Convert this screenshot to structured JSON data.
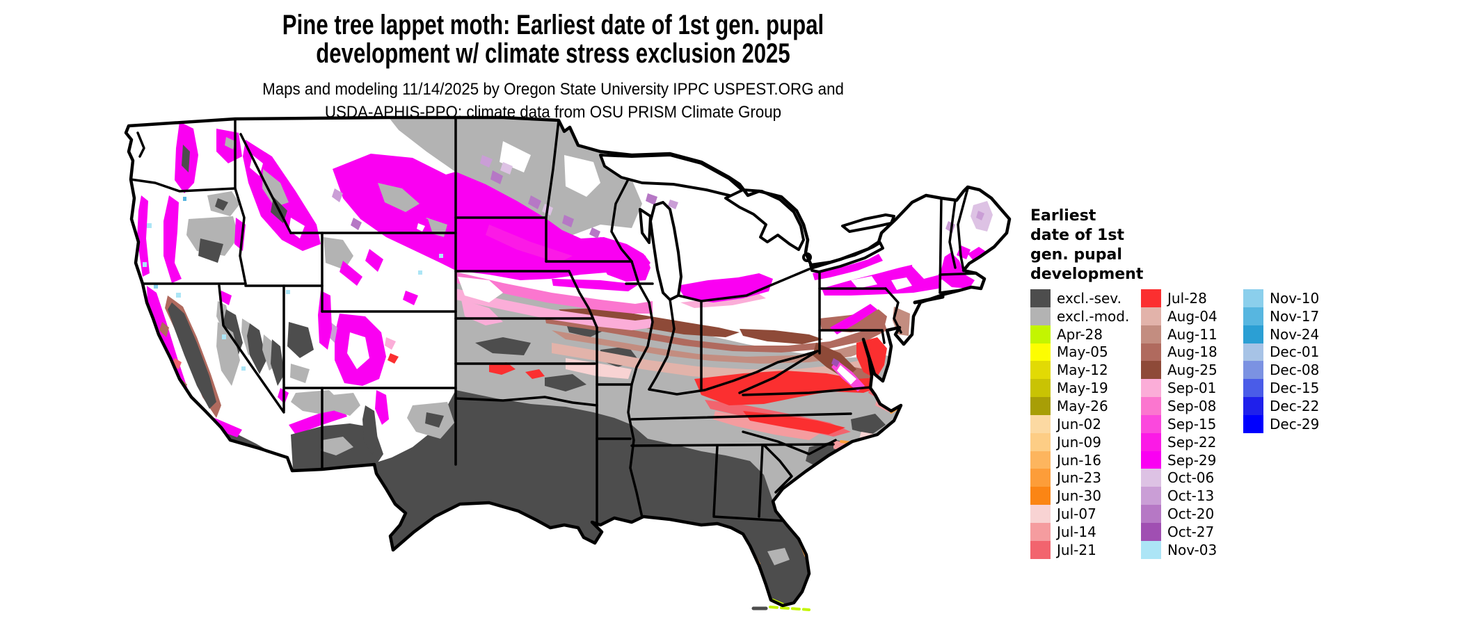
{
  "title": {
    "line1": "Pine tree lappet moth: Earliest date of 1st gen. pupal",
    "line2": "development w/ climate stress exclusion 2025"
  },
  "subtitle": {
    "line1": "Maps and modeling 11/14/2025 by Oregon State University IPPC USPEST.ORG and",
    "line2": "USDA-APHIS-PPQ; climate data from OSU PRISM Climate Group"
  },
  "legend": {
    "title_lines": [
      "Earliest",
      "date of 1st",
      "gen. pupal",
      "development"
    ],
    "columns": [
      [
        {
          "key": "excl_sev",
          "label": "excl.-sev.",
          "color": "#4d4d4d"
        },
        {
          "key": "excl_mod",
          "label": "excl.-mod.",
          "color": "#b3b3b3"
        },
        {
          "key": "apr28",
          "label": "Apr-28",
          "color": "#c3f501"
        },
        {
          "key": "may05",
          "label": "May-05",
          "color": "#fdfd01"
        },
        {
          "key": "may12",
          "label": "May-12",
          "color": "#e2da04"
        },
        {
          "key": "may19",
          "label": "May-19",
          "color": "#c9c303"
        },
        {
          "key": "may26",
          "label": "May-26",
          "color": "#a89e06"
        },
        {
          "key": "jun02",
          "label": "Jun-02",
          "color": "#fcd9a2"
        },
        {
          "key": "jun09",
          "label": "Jun-09",
          "color": "#fdcd85"
        },
        {
          "key": "jun16",
          "label": "Jun-16",
          "color": "#fdb55e"
        },
        {
          "key": "jun23",
          "label": "Jun-23",
          "color": "#fd9d39"
        },
        {
          "key": "jun30",
          "label": "Jun-30",
          "color": "#fb8514"
        },
        {
          "key": "jul07",
          "label": "Jul-07",
          "color": "#f8d3d3"
        },
        {
          "key": "jul14",
          "label": "Jul-14",
          "color": "#f59c9f"
        },
        {
          "key": "jul21",
          "label": "Jul-21",
          "color": "#f2646e"
        }
      ],
      [
        {
          "key": "jul28",
          "label": "Jul-28",
          "color": "#fb2f30"
        },
        {
          "key": "aug04",
          "label": "Aug-04",
          "color": "#e2b3aa"
        },
        {
          "key": "aug11",
          "label": "Aug-11",
          "color": "#c38d80"
        },
        {
          "key": "aug18",
          "label": "Aug-18",
          "color": "#b06a5e"
        },
        {
          "key": "aug25",
          "label": "Aug-25",
          "color": "#8e4a38"
        },
        {
          "key": "sep01",
          "label": "Sep-01",
          "color": "#fbadd8"
        },
        {
          "key": "sep08",
          "label": "Sep-08",
          "color": "#fb76cf"
        },
        {
          "key": "sep15",
          "label": "Sep-15",
          "color": "#fb48dd"
        },
        {
          "key": "sep22",
          "label": "Sep-22",
          "color": "#fb1ae6"
        },
        {
          "key": "sep29",
          "label": "Sep-29",
          "color": "#fa00f2"
        },
        {
          "key": "oct06",
          "label": "Oct-06",
          "color": "#ddc2e4"
        },
        {
          "key": "oct13",
          "label": "Oct-13",
          "color": "#ca9ed6"
        },
        {
          "key": "oct20",
          "label": "Oct-20",
          "color": "#b678c5"
        },
        {
          "key": "oct27",
          "label": "Oct-27",
          "color": "#a04fb2"
        },
        {
          "key": "nov03",
          "label": "Nov-03",
          "color": "#ace5f6"
        }
      ],
      [
        {
          "key": "nov10",
          "label": "Nov-10",
          "color": "#8bcfec"
        },
        {
          "key": "nov17",
          "label": "Nov-17",
          "color": "#57b6e0"
        },
        {
          "key": "nov24",
          "label": "Nov-24",
          "color": "#2b9fd4"
        },
        {
          "key": "dec01",
          "label": "Dec-01",
          "color": "#a7c3e6"
        },
        {
          "key": "dec08",
          "label": "Dec-08",
          "color": "#7b92e2"
        },
        {
          "key": "dec15",
          "label": "Dec-15",
          "color": "#4a5ce8"
        },
        {
          "key": "dec22",
          "label": "Dec-22",
          "color": "#1f20eb"
        },
        {
          "key": "dec29",
          "label": "Dec-29",
          "color": "#0000fe"
        }
      ]
    ]
  },
  "map": {
    "kind": "raster choropleth of conterminous United States with state borders",
    "no_data_color": "#ffffff",
    "border_color": "#000000",
    "regions_summary": [
      "Deep South, Texas, Florida and Gulf states: excl.-sev. dark gray",
      "Kansas, Missouri, central plains, Carolinas, Georgia uplands: excl.-mod. light gray mottle",
      "Kentucky / Tennessee / Virginia / Maryland-Delaware: Jul-28 red band with Jul-14 and Jul-21 fringes",
      "Corn Belt Iowa-Illinois-Indiana-Ohio-southern Pennsylvania: Aug-04 to Aug-25 tan-to-brown bands",
      "Northern plains, upper Midwest, Great Lakes, upstate New York, New England: Sep-08 to Sep-29 pink-magenta band",
      "Northern North Dakota and Minnesota: excl.-mod. gray",
      "Mountain West: white (no development) with magenta ridges, gray and dark-gray basins, Oct purple fringes, Nov cyan specks",
      "Coastal fringes: Jun orange and May yellow dashes along Gulf and south Atlantic, Apr-28 green at Florida Keys"
    ]
  }
}
